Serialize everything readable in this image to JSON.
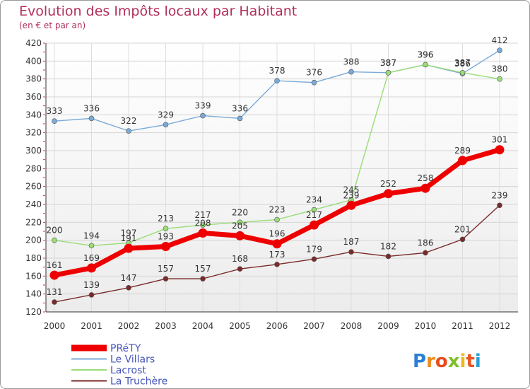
{
  "chart_data": {
    "type": "line",
    "title": "Evolution des Impôts locaux par Habitant",
    "subtitle": "(en € et par an)",
    "xlabel": "",
    "ylabel": "",
    "ylim": [
      120,
      420
    ],
    "yticks": [
      120,
      140,
      160,
      180,
      200,
      220,
      240,
      260,
      280,
      300,
      320,
      340,
      360,
      380,
      400,
      420
    ],
    "grid": true,
    "legend_position": "bottom-left",
    "x": [
      "2000",
      "2001",
      "2002",
      "2003",
      "2004",
      "2005",
      "2006",
      "2007",
      "2008",
      "2009",
      "2010",
      "2011",
      "2012"
    ],
    "series": [
      {
        "name": "PRéTY",
        "color": "#ee0000",
        "values": [
          161,
          169,
          191,
          193,
          208,
          205,
          196,
          217,
          239,
          252,
          258,
          289,
          301
        ]
      },
      {
        "name": "Le Villars",
        "color": "#7aaad8",
        "values": [
          333,
          336,
          322,
          329,
          339,
          336,
          378,
          376,
          388,
          387,
          396,
          386,
          412
        ]
      },
      {
        "name": "Lacrost",
        "color": "#99dd77",
        "values": [
          200,
          194,
          197,
          213,
          217,
          220,
          223,
          234,
          245,
          387,
          396,
          387,
          380
        ]
      },
      {
        "name": "La Truchère",
        "color": "#7a2a2a",
        "values": [
          131,
          139,
          147,
          157,
          157,
          168,
          173,
          179,
          187,
          182,
          186,
          201,
          239
        ]
      }
    ]
  },
  "brand": {
    "logo_text": "Proxiti"
  }
}
